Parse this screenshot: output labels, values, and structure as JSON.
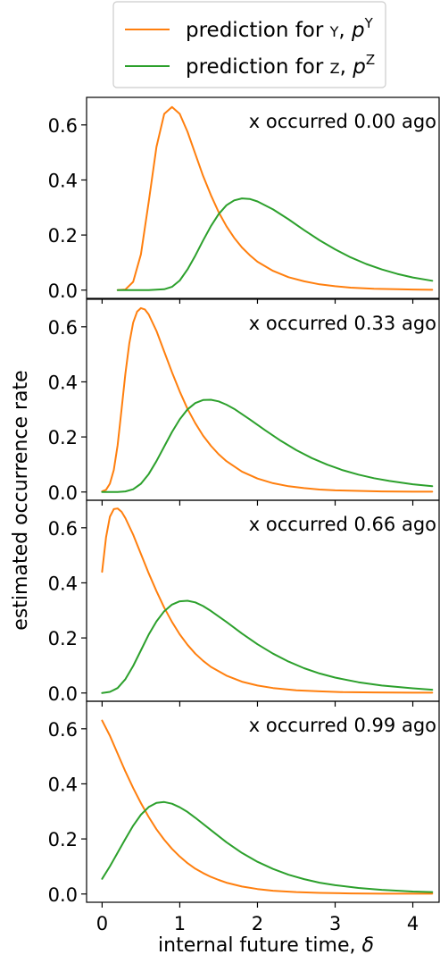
{
  "legend": {
    "placement": "top-center",
    "entries": [
      {
        "label_main": "prediction for ",
        "label_small": "Y",
        "label_mid": ", ",
        "label_italic": "p",
        "label_sup": "Y",
        "color": "#ff7f0e"
      },
      {
        "label_main": "prediction for ",
        "label_small": "Z",
        "label_mid": ", ",
        "label_italic": "p",
        "label_sup": "Z",
        "color": "#2ca02c"
      }
    ]
  },
  "chart_data": {
    "type": "line",
    "xlabel_main": "internal future time, ",
    "xlabel_symbol": "δ",
    "ylabel": "estimated occurrence rate",
    "xlim": [
      -0.2,
      4.35
    ],
    "ylim": [
      -0.03,
      0.7
    ],
    "xticks": [
      0,
      1,
      2,
      3,
      4
    ],
    "yticks": [
      "0.0",
      "0.2",
      "0.4",
      "0.6"
    ],
    "grid": false,
    "panels": [
      {
        "annotation": "x occurred 0.00 ago",
        "series": [
          {
            "name": "prediction for Y",
            "color": "#ff7f0e",
            "x": [
              0.2,
              0.3,
              0.4,
              0.5,
              0.6,
              0.7,
              0.8,
              0.9,
              1.0,
              1.1,
              1.2,
              1.3,
              1.4,
              1.5,
              1.6,
              1.7,
              1.8,
              1.9,
              2.0,
              2.2,
              2.4,
              2.6,
              2.8,
              3.0,
              3.2,
              3.5,
              3.8,
              4.0,
              4.25
            ],
            "y": [
              0.0,
              0.002,
              0.03,
              0.13,
              0.32,
              0.52,
              0.64,
              0.665,
              0.64,
              0.575,
              0.495,
              0.415,
              0.345,
              0.283,
              0.232,
              0.19,
              0.155,
              0.127,
              0.103,
              0.07,
              0.047,
              0.032,
              0.021,
              0.014,
              0.009,
              0.005,
              0.003,
              0.002,
              0.001
            ]
          },
          {
            "name": "prediction for Z",
            "color": "#2ca02c",
            "x": [
              0.2,
              0.4,
              0.6,
              0.8,
              0.9,
              1.0,
              1.1,
              1.2,
              1.3,
              1.4,
              1.5,
              1.6,
              1.7,
              1.8,
              1.9,
              2.0,
              2.2,
              2.4,
              2.6,
              2.8,
              3.0,
              3.2,
              3.4,
              3.6,
              3.8,
              4.0,
              4.25
            ],
            "y": [
              0.0,
              0.0,
              0.0,
              0.003,
              0.012,
              0.035,
              0.075,
              0.125,
              0.18,
              0.232,
              0.276,
              0.308,
              0.326,
              0.333,
              0.331,
              0.322,
              0.293,
              0.257,
              0.218,
              0.181,
              0.148,
              0.119,
              0.095,
              0.075,
              0.059,
              0.046,
              0.034
            ]
          }
        ]
      },
      {
        "annotation": "x occurred 0.33 ago",
        "series": [
          {
            "name": "prediction for Y",
            "color": "#ff7f0e",
            "x": [
              0.0,
              0.05,
              0.1,
              0.15,
              0.2,
              0.25,
              0.3,
              0.35,
              0.4,
              0.45,
              0.5,
              0.55,
              0.6,
              0.7,
              0.8,
              0.9,
              1.0,
              1.1,
              1.2,
              1.3,
              1.4,
              1.5,
              1.6,
              1.8,
              2.0,
              2.2,
              2.4,
              2.6,
              2.8,
              3.0,
              3.3,
              3.6,
              4.0,
              4.25
            ],
            "y": [
              0.002,
              0.008,
              0.03,
              0.08,
              0.17,
              0.3,
              0.43,
              0.54,
              0.615,
              0.655,
              0.668,
              0.663,
              0.645,
              0.585,
              0.51,
              0.435,
              0.365,
              0.302,
              0.25,
              0.205,
              0.168,
              0.137,
              0.112,
              0.074,
              0.049,
              0.032,
              0.021,
              0.014,
              0.009,
              0.006,
              0.004,
              0.002,
              0.001,
              0.001
            ]
          },
          {
            "name": "prediction for Z",
            "color": "#2ca02c",
            "x": [
              0.0,
              0.2,
              0.3,
              0.4,
              0.5,
              0.6,
              0.7,
              0.8,
              0.9,
              1.0,
              1.1,
              1.2,
              1.3,
              1.4,
              1.5,
              1.6,
              1.7,
              1.9,
              2.1,
              2.3,
              2.5,
              2.7,
              2.9,
              3.1,
              3.3,
              3.5,
              3.7,
              4.0,
              4.25
            ],
            "y": [
              0.0,
              0.0,
              0.002,
              0.01,
              0.03,
              0.065,
              0.112,
              0.165,
              0.218,
              0.264,
              0.3,
              0.323,
              0.334,
              0.335,
              0.329,
              0.317,
              0.302,
              0.264,
              0.224,
              0.186,
              0.152,
              0.123,
              0.099,
              0.079,
              0.063,
              0.05,
              0.04,
              0.028,
              0.021
            ]
          }
        ]
      },
      {
        "annotation": "x occurred 0.66 ago",
        "series": [
          {
            "name": "prediction for Y",
            "color": "#ff7f0e",
            "x": [
              0.0,
              0.05,
              0.1,
              0.15,
              0.2,
              0.25,
              0.3,
              0.4,
              0.5,
              0.6,
              0.7,
              0.8,
              0.9,
              1.0,
              1.1,
              1.2,
              1.3,
              1.4,
              1.6,
              1.8,
              2.0,
              2.2,
              2.5,
              2.8,
              3.1,
              3.5,
              4.0,
              4.25
            ],
            "y": [
              0.44,
              0.565,
              0.64,
              0.668,
              0.67,
              0.658,
              0.635,
              0.575,
              0.505,
              0.435,
              0.37,
              0.31,
              0.258,
              0.213,
              0.175,
              0.143,
              0.117,
              0.095,
              0.063,
              0.041,
              0.027,
              0.018,
              0.01,
              0.006,
              0.003,
              0.002,
              0.001,
              0.001
            ]
          },
          {
            "name": "prediction for Z",
            "color": "#2ca02c",
            "x": [
              0.0,
              0.1,
              0.2,
              0.3,
              0.4,
              0.5,
              0.6,
              0.7,
              0.8,
              0.9,
              1.0,
              1.1,
              1.2,
              1.3,
              1.4,
              1.6,
              1.8,
              2.0,
              2.2,
              2.4,
              2.6,
              2.8,
              3.0,
              3.3,
              3.6,
              4.0,
              4.25
            ],
            "y": [
              0.0,
              0.004,
              0.018,
              0.05,
              0.098,
              0.155,
              0.212,
              0.26,
              0.297,
              0.321,
              0.333,
              0.335,
              0.329,
              0.316,
              0.298,
              0.258,
              0.216,
              0.177,
              0.143,
              0.114,
              0.09,
              0.071,
              0.056,
              0.039,
              0.027,
              0.017,
              0.012
            ]
          }
        ]
      },
      {
        "annotation": "x occurred 0.99 ago",
        "series": [
          {
            "name": "prediction for Y",
            "color": "#ff7f0e",
            "x": [
              0.0,
              0.1,
              0.2,
              0.3,
              0.4,
              0.5,
              0.6,
              0.7,
              0.8,
              0.9,
              1.0,
              1.1,
              1.2,
              1.3,
              1.4,
              1.5,
              1.6,
              1.8,
              2.0,
              2.2,
              2.5,
              2.8,
              3.2,
              3.6,
              4.0,
              4.25
            ],
            "y": [
              0.63,
              0.575,
              0.51,
              0.445,
              0.385,
              0.33,
              0.28,
              0.235,
              0.197,
              0.164,
              0.136,
              0.112,
              0.092,
              0.076,
              0.062,
              0.051,
              0.041,
              0.027,
              0.018,
              0.012,
              0.007,
              0.004,
              0.002,
              0.001,
              0.001,
              0.001
            ]
          },
          {
            "name": "prediction for Z",
            "color": "#2ca02c",
            "x": [
              0.0,
              0.1,
              0.2,
              0.3,
              0.4,
              0.5,
              0.6,
              0.7,
              0.8,
              0.9,
              1.0,
              1.1,
              1.2,
              1.4,
              1.6,
              1.8,
              2.0,
              2.2,
              2.4,
              2.6,
              2.8,
              3.0,
              3.3,
              3.6,
              4.0,
              4.25
            ],
            "y": [
              0.055,
              0.1,
              0.15,
              0.2,
              0.248,
              0.288,
              0.316,
              0.331,
              0.334,
              0.328,
              0.315,
              0.298,
              0.277,
              0.232,
              0.188,
              0.149,
              0.117,
              0.091,
              0.07,
              0.054,
              0.041,
              0.032,
              0.022,
              0.015,
              0.009,
              0.007
            ]
          }
        ]
      }
    ]
  }
}
